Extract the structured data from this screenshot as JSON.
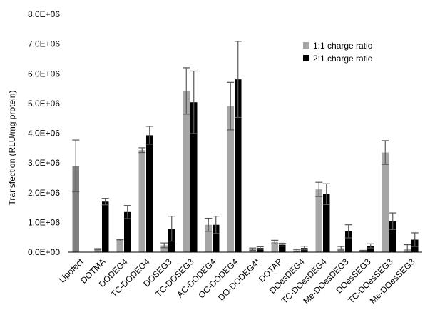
{
  "chart_data": {
    "type": "bar",
    "ylabel": "Transfection (RLU/mg protein)",
    "ylim": [
      0,
      8000000
    ],
    "yticks": [
      "0.0E+00",
      "1.0E+06",
      "2.0E+06",
      "3.0E+06",
      "4.0E+06",
      "5.0E+06",
      "6.0E+06",
      "7.0E+06",
      "8.0E+06"
    ],
    "legend_position": "top-right",
    "grid": false,
    "categories": [
      "Lipofect",
      "DOTMA",
      "DODEG4",
      "TC-DODEG4",
      "DOSEG3",
      "TC-DOSEG3",
      "AC-DODEG4",
      "OC-DODEG4",
      "DO-DODEG4*",
      "DOTAP",
      "DOesDEG4",
      "TC-DOesDEG4",
      "Me-DOesDEG3",
      "DOesSEG3",
      "TC-DOesSEG3",
      "Me-DOesSEG3"
    ],
    "series": [
      {
        "name": "1:1 charge ratio",
        "color": "#a6a6a6",
        "values": [
          2900000,
          100000,
          400000,
          3430000,
          230000,
          5420000,
          920000,
          4910000,
          100000,
          340000,
          60000,
          2110000,
          130000,
          40000,
          3350000,
          100000
        ],
        "errors": [
          870000,
          20000,
          20000,
          80000,
          80000,
          780000,
          220000,
          800000,
          40000,
          60000,
          30000,
          240000,
          60000,
          20000,
          400000,
          150000
        ]
      },
      {
        "name": "2:1 charge ratio",
        "color": "#000000",
        "values": [
          0,
          1700000,
          1350000,
          3930000,
          790000,
          5040000,
          920000,
          5810000,
          140000,
          250000,
          140000,
          1950000,
          700000,
          210000,
          1040000,
          420000
        ],
        "errors": [
          0,
          110000,
          220000,
          300000,
          420000,
          1050000,
          290000,
          1280000,
          40000,
          50000,
          60000,
          350000,
          220000,
          70000,
          280000,
          230000
        ]
      }
    ],
    "lipofect_color": "#7f7f7f"
  }
}
